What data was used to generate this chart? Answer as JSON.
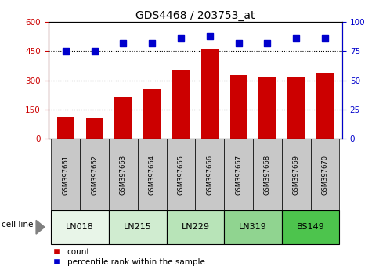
{
  "title": "GDS4468 / 203753_at",
  "samples": [
    "GSM397661",
    "GSM397662",
    "GSM397663",
    "GSM397664",
    "GSM397665",
    "GSM397666",
    "GSM397667",
    "GSM397668",
    "GSM397669",
    "GSM397670"
  ],
  "counts": [
    110,
    105,
    215,
    255,
    350,
    460,
    325,
    320,
    320,
    340
  ],
  "percentile_ranks": [
    75,
    75,
    82,
    82,
    86,
    88,
    82,
    82,
    86,
    86
  ],
  "cell_groups": [
    {
      "name": "LN018",
      "start": 0,
      "end": 1,
      "color": "#e8f5e8"
    },
    {
      "name": "LN215",
      "start": 2,
      "end": 3,
      "color": "#d0ecd0"
    },
    {
      "name": "LN229",
      "start": 4,
      "end": 5,
      "color": "#b8e4b8"
    },
    {
      "name": "LN319",
      "start": 6,
      "end": 7,
      "color": "#90d490"
    },
    {
      "name": "BS149",
      "start": 8,
      "end": 9,
      "color": "#4dc44d"
    }
  ],
  "ylim_left": [
    0,
    600
  ],
  "ylim_right": [
    0,
    100
  ],
  "yticks_left": [
    0,
    150,
    300,
    450,
    600
  ],
  "yticks_right": [
    0,
    25,
    50,
    75,
    100
  ],
  "bar_color": "#cc0000",
  "dot_color": "#0000cc",
  "tick_label_bg": "#c8c8c8",
  "left_axis_color": "#cc0000",
  "right_axis_color": "#0000cc",
  "grid_lines_at": [
    150,
    300,
    450
  ],
  "bar_width": 0.6
}
